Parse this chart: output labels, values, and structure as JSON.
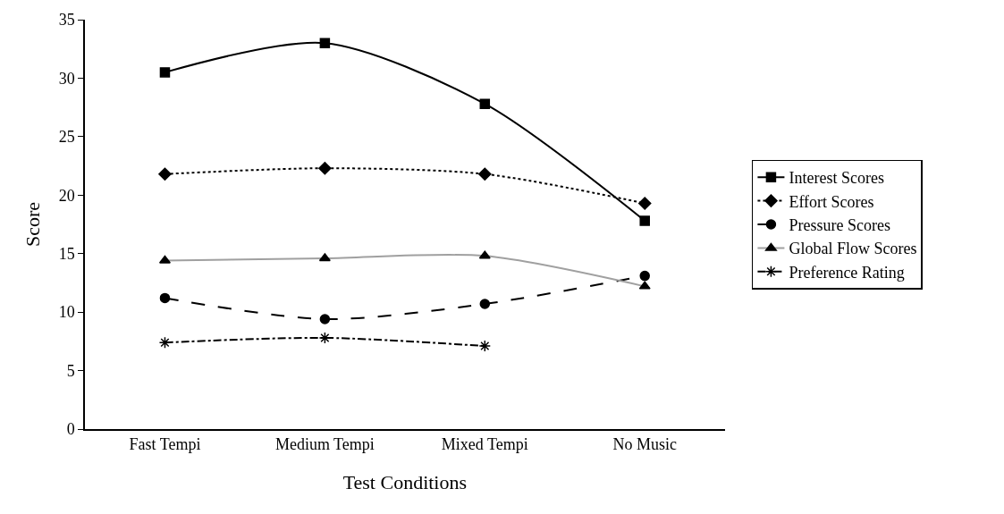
{
  "chart_data": {
    "type": "line",
    "xlabel": "Test Conditions",
    "ylabel": "Score",
    "categories": [
      "Fast Tempi",
      "Medium Tempi",
      "Mixed Tempi",
      "No Music"
    ],
    "ylim": [
      0,
      35
    ],
    "yticks": [
      0,
      5,
      10,
      15,
      20,
      25,
      30,
      35
    ],
    "legend": "right",
    "series": [
      {
        "name": "Interest Scores",
        "color": "#000000",
        "marker": "square",
        "line_style": "solid",
        "values": [
          30.5,
          33.0,
          27.8,
          17.8
        ]
      },
      {
        "name": "Effort Scores",
        "color": "#000000",
        "marker": "diamond",
        "line_style": "dotted",
        "values": [
          21.8,
          22.3,
          21.8,
          19.3
        ]
      },
      {
        "name": "Pressure Scores",
        "color": "#000000",
        "marker": "circle",
        "line_style": "dashed",
        "values": [
          11.2,
          9.4,
          10.7,
          13.1
        ]
      },
      {
        "name": "Global Flow Scores",
        "color": "#a0a0a0",
        "marker": "triangle",
        "line_style": "solid",
        "values": [
          14.4,
          14.6,
          14.8,
          12.2
        ]
      },
      {
        "name": "Preference Rating",
        "color": "#000000",
        "marker": "cross",
        "line_style": "dashdot",
        "values": [
          7.4,
          7.8,
          7.1,
          null
        ]
      }
    ]
  }
}
